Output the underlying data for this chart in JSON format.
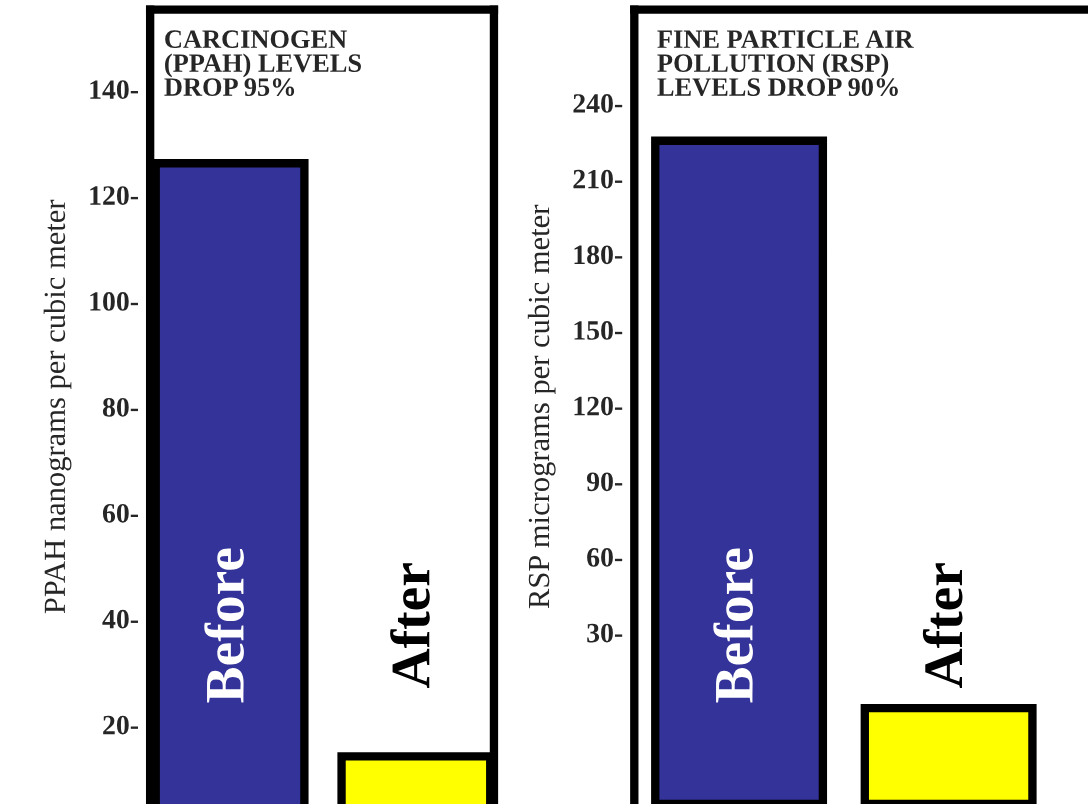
{
  "chart_data": [
    {
      "type": "bar",
      "title": "CARCINOGEN\n(PPAH) LEVELS\nDROP 95%",
      "ylabel": "PPAH nanograms per cubic meter",
      "categories": [
        "Before",
        "After"
      ],
      "values": [
        126,
        14
      ],
      "colors": [
        "#333399",
        "#ffff00"
      ],
      "ylim": [
        5,
        155
      ],
      "yticks": [
        {
          "value": 20,
          "label": "20-"
        },
        {
          "value": 40,
          "label": "40-"
        },
        {
          "value": 60,
          "label": "60-"
        },
        {
          "value": 80,
          "label": "80-"
        },
        {
          "value": 100,
          "label": "100-"
        },
        {
          "value": 120,
          "label": "120-"
        },
        {
          "value": 140,
          "label": "140-"
        }
      ],
      "grid": false,
      "legend": false
    },
    {
      "type": "bar",
      "title": "FINE PARTICLE AIR\nPOLLUTION (RSP)\nLEVELS DROP 90%",
      "ylabel": "RSP micrograms per cubic meter",
      "categories": [
        "Before",
        "After"
      ],
      "values": [
        263,
        38
      ],
      "base": [
        -38,
        -38
      ],
      "colors": [
        "#333399",
        "#ffff00"
      ],
      "ylim": [
        -38,
        277
      ],
      "yticks": [
        {
          "value": 30,
          "label": "30-"
        },
        {
          "value": 60,
          "label": "60-"
        },
        {
          "value": 90,
          "label": "90-"
        },
        {
          "value": 120,
          "label": "120-"
        },
        {
          "value": 150,
          "label": "150-"
        },
        {
          "value": 180,
          "label": "180-"
        },
        {
          "value": 210,
          "label": "210-"
        },
        {
          "value": 240,
          "label": "240-"
        }
      ],
      "grid": false,
      "legend": false
    }
  ]
}
